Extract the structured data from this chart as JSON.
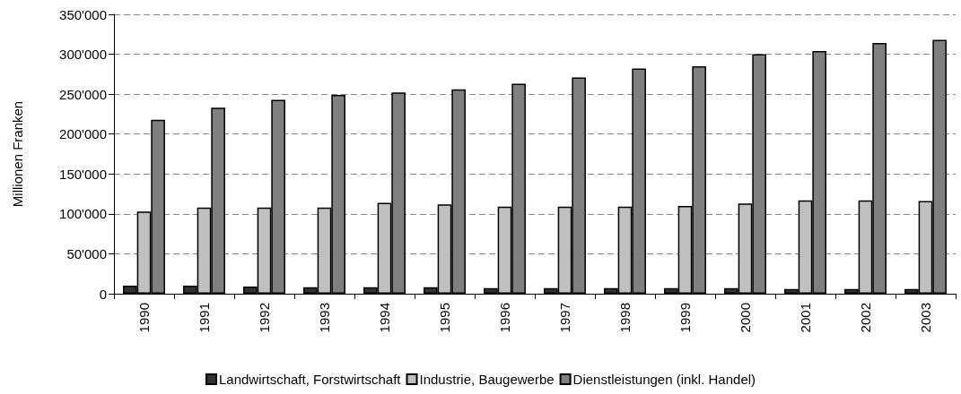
{
  "chart_data": {
    "type": "bar",
    "ylabel": "Millionen Franken",
    "categories": [
      "1990",
      "1991",
      "1992",
      "1993",
      "1994",
      "1995",
      "1996",
      "1997",
      "1998",
      "1999",
      "2000",
      "2001",
      "2002",
      "2003"
    ],
    "series": [
      {
        "name": "Landwirtschaft, Forstwirtschaft",
        "color": "#333333",
        "values": [
          10000,
          10000,
          9000,
          8000,
          8000,
          8000,
          7000,
          7000,
          7000,
          7000,
          7000,
          6000,
          6000,
          6000
        ]
      },
      {
        "name": "Industrie, Baugewerbe",
        "color": "#c0c0c0",
        "values": [
          103000,
          108000,
          108000,
          108000,
          114000,
          112000,
          109000,
          109000,
          109000,
          110000,
          113000,
          117000,
          117000,
          116000
        ]
      },
      {
        "name": "Dienstleistungen (inkl. Handel)",
        "color": "#808080",
        "values": [
          218000,
          233000,
          243000,
          249000,
          252000,
          256000,
          263000,
          271000,
          282000,
          285000,
          300000,
          304000,
          314000,
          318000
        ]
      }
    ],
    "ylim": [
      0,
      350000
    ],
    "yticks": [
      0,
      {
        "value": 50000,
        "label": "50'000"
      },
      {
        "value": 100000,
        "label": "100'000"
      },
      {
        "value": 150000,
        "label": "150'000"
      },
      {
        "value": 200000,
        "label": "200'000"
      },
      {
        "value": 250000,
        "label": "250'000"
      },
      {
        "value": 300000,
        "label": "300'000"
      },
      {
        "value": 350000,
        "label": "350'000"
      }
    ],
    "grid": "y",
    "legend": "bottom"
  }
}
